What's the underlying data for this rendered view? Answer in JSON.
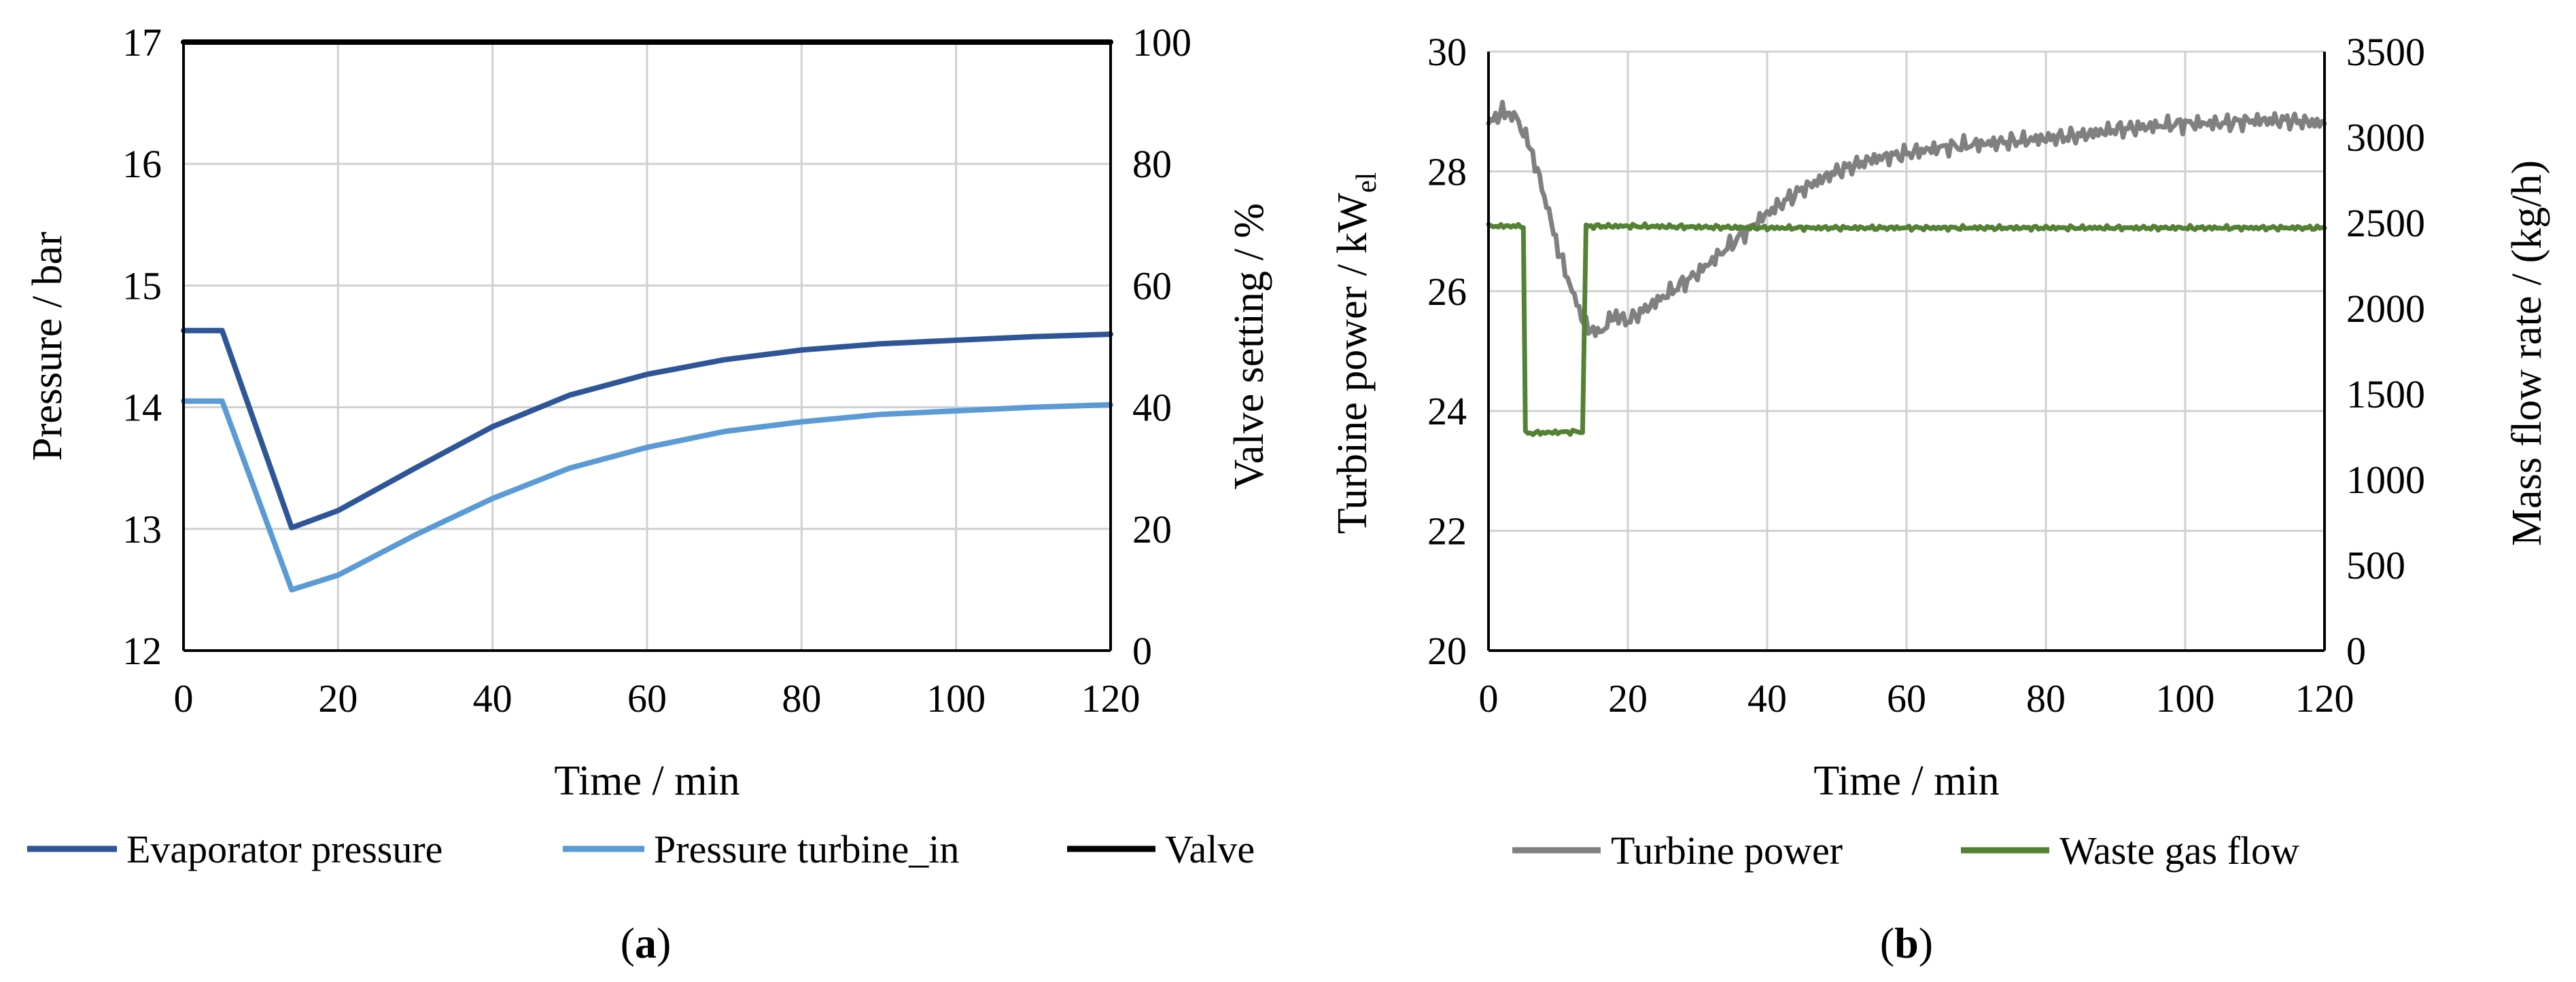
{
  "chart_data": [
    {
      "type": "line",
      "panel_label": {
        "open": "(",
        "letter": "a",
        "close": ")"
      },
      "title": "",
      "xlabel": "Time / min",
      "ylabel": "Pressure / bar",
      "y2label": "Valve setting / %",
      "xlim": [
        0,
        120
      ],
      "ylim": [
        12,
        17
      ],
      "y2lim": [
        0,
        100
      ],
      "xticks": [
        "0",
        "20",
        "40",
        "60",
        "80",
        "100",
        "120"
      ],
      "yticks": [
        "12",
        "13",
        "14",
        "15",
        "16",
        "17"
      ],
      "y2ticks": [
        "0",
        "20",
        "40",
        "60",
        "80",
        "100"
      ],
      "grid": true,
      "legend_position": "bottom",
      "series": [
        {
          "name": "Evaporator pressure",
          "axis": "left",
          "color": "#2E5597",
          "x": [
            0,
            5,
            14,
            20,
            30,
            40,
            50,
            60,
            70,
            80,
            90,
            100,
            110,
            120
          ],
          "values": [
            14.63,
            14.63,
            13.01,
            13.15,
            13.5,
            13.84,
            14.1,
            14.27,
            14.39,
            14.47,
            14.52,
            14.55,
            14.58,
            14.6
          ]
        },
        {
          "name": "Pressure turbine_in",
          "axis": "left",
          "color": "#5B9BD5",
          "x": [
            0,
            5,
            14,
            20,
            30,
            40,
            50,
            60,
            70,
            80,
            90,
            100,
            110,
            120
          ],
          "values": [
            14.05,
            14.05,
            12.5,
            12.62,
            12.95,
            13.25,
            13.5,
            13.67,
            13.8,
            13.88,
            13.94,
            13.97,
            14.0,
            14.02
          ]
        },
        {
          "name": "Valve",
          "axis": "right",
          "color": "#000000",
          "x": [
            0,
            120
          ],
          "values": [
            100,
            100
          ]
        }
      ]
    },
    {
      "type": "line",
      "panel_label": {
        "open": "(",
        "letter": "b",
        "close": ")"
      },
      "title": "",
      "xlabel": "Time / min",
      "ylabel": "Turbine power / kW",
      "ylabel_subscript": "el",
      "y2label": "Mass flow rate / (kg/h)",
      "xlim": [
        0,
        120
      ],
      "ylim": [
        20,
        30
      ],
      "y2lim": [
        0,
        3500
      ],
      "xticks": [
        "0",
        "20",
        "40",
        "60",
        "80",
        "100",
        "120"
      ],
      "yticks": [
        "20",
        "22",
        "24",
        "26",
        "28",
        "30"
      ],
      "y2ticks": [
        "0",
        "500",
        "1000",
        "1500",
        "2000",
        "2500",
        "3000",
        "3500"
      ],
      "grid": true,
      "legend_position": "bottom",
      "series": [
        {
          "name": "Turbine power",
          "axis": "left",
          "color": "#808080",
          "x": [
            0,
            2,
            4,
            6,
            8,
            10,
            12,
            14,
            16,
            18,
            20,
            25,
            30,
            35,
            40,
            45,
            50,
            55,
            60,
            65,
            70,
            75,
            80,
            85,
            90,
            95,
            100,
            105,
            110,
            115,
            120
          ],
          "values": [
            28.8,
            29.0,
            28.9,
            28.4,
            27.6,
            26.7,
            26.0,
            25.4,
            25.3,
            25.6,
            25.5,
            25.9,
            26.3,
            26.8,
            27.3,
            27.7,
            28.0,
            28.2,
            28.3,
            28.4,
            28.45,
            28.5,
            28.55,
            28.6,
            28.7,
            28.75,
            28.8,
            28.8,
            28.85,
            28.85,
            28.8
          ]
        },
        {
          "name": "Waste gas flow",
          "axis": "right",
          "color": "#548235",
          "x": [
            0,
            5,
            5.3,
            13.5,
            14,
            20,
            40,
            60,
            80,
            100,
            120
          ],
          "values": [
            2480,
            2480,
            1270,
            1280,
            2480,
            2480,
            2470,
            2470,
            2470,
            2470,
            2470
          ]
        }
      ]
    }
  ]
}
